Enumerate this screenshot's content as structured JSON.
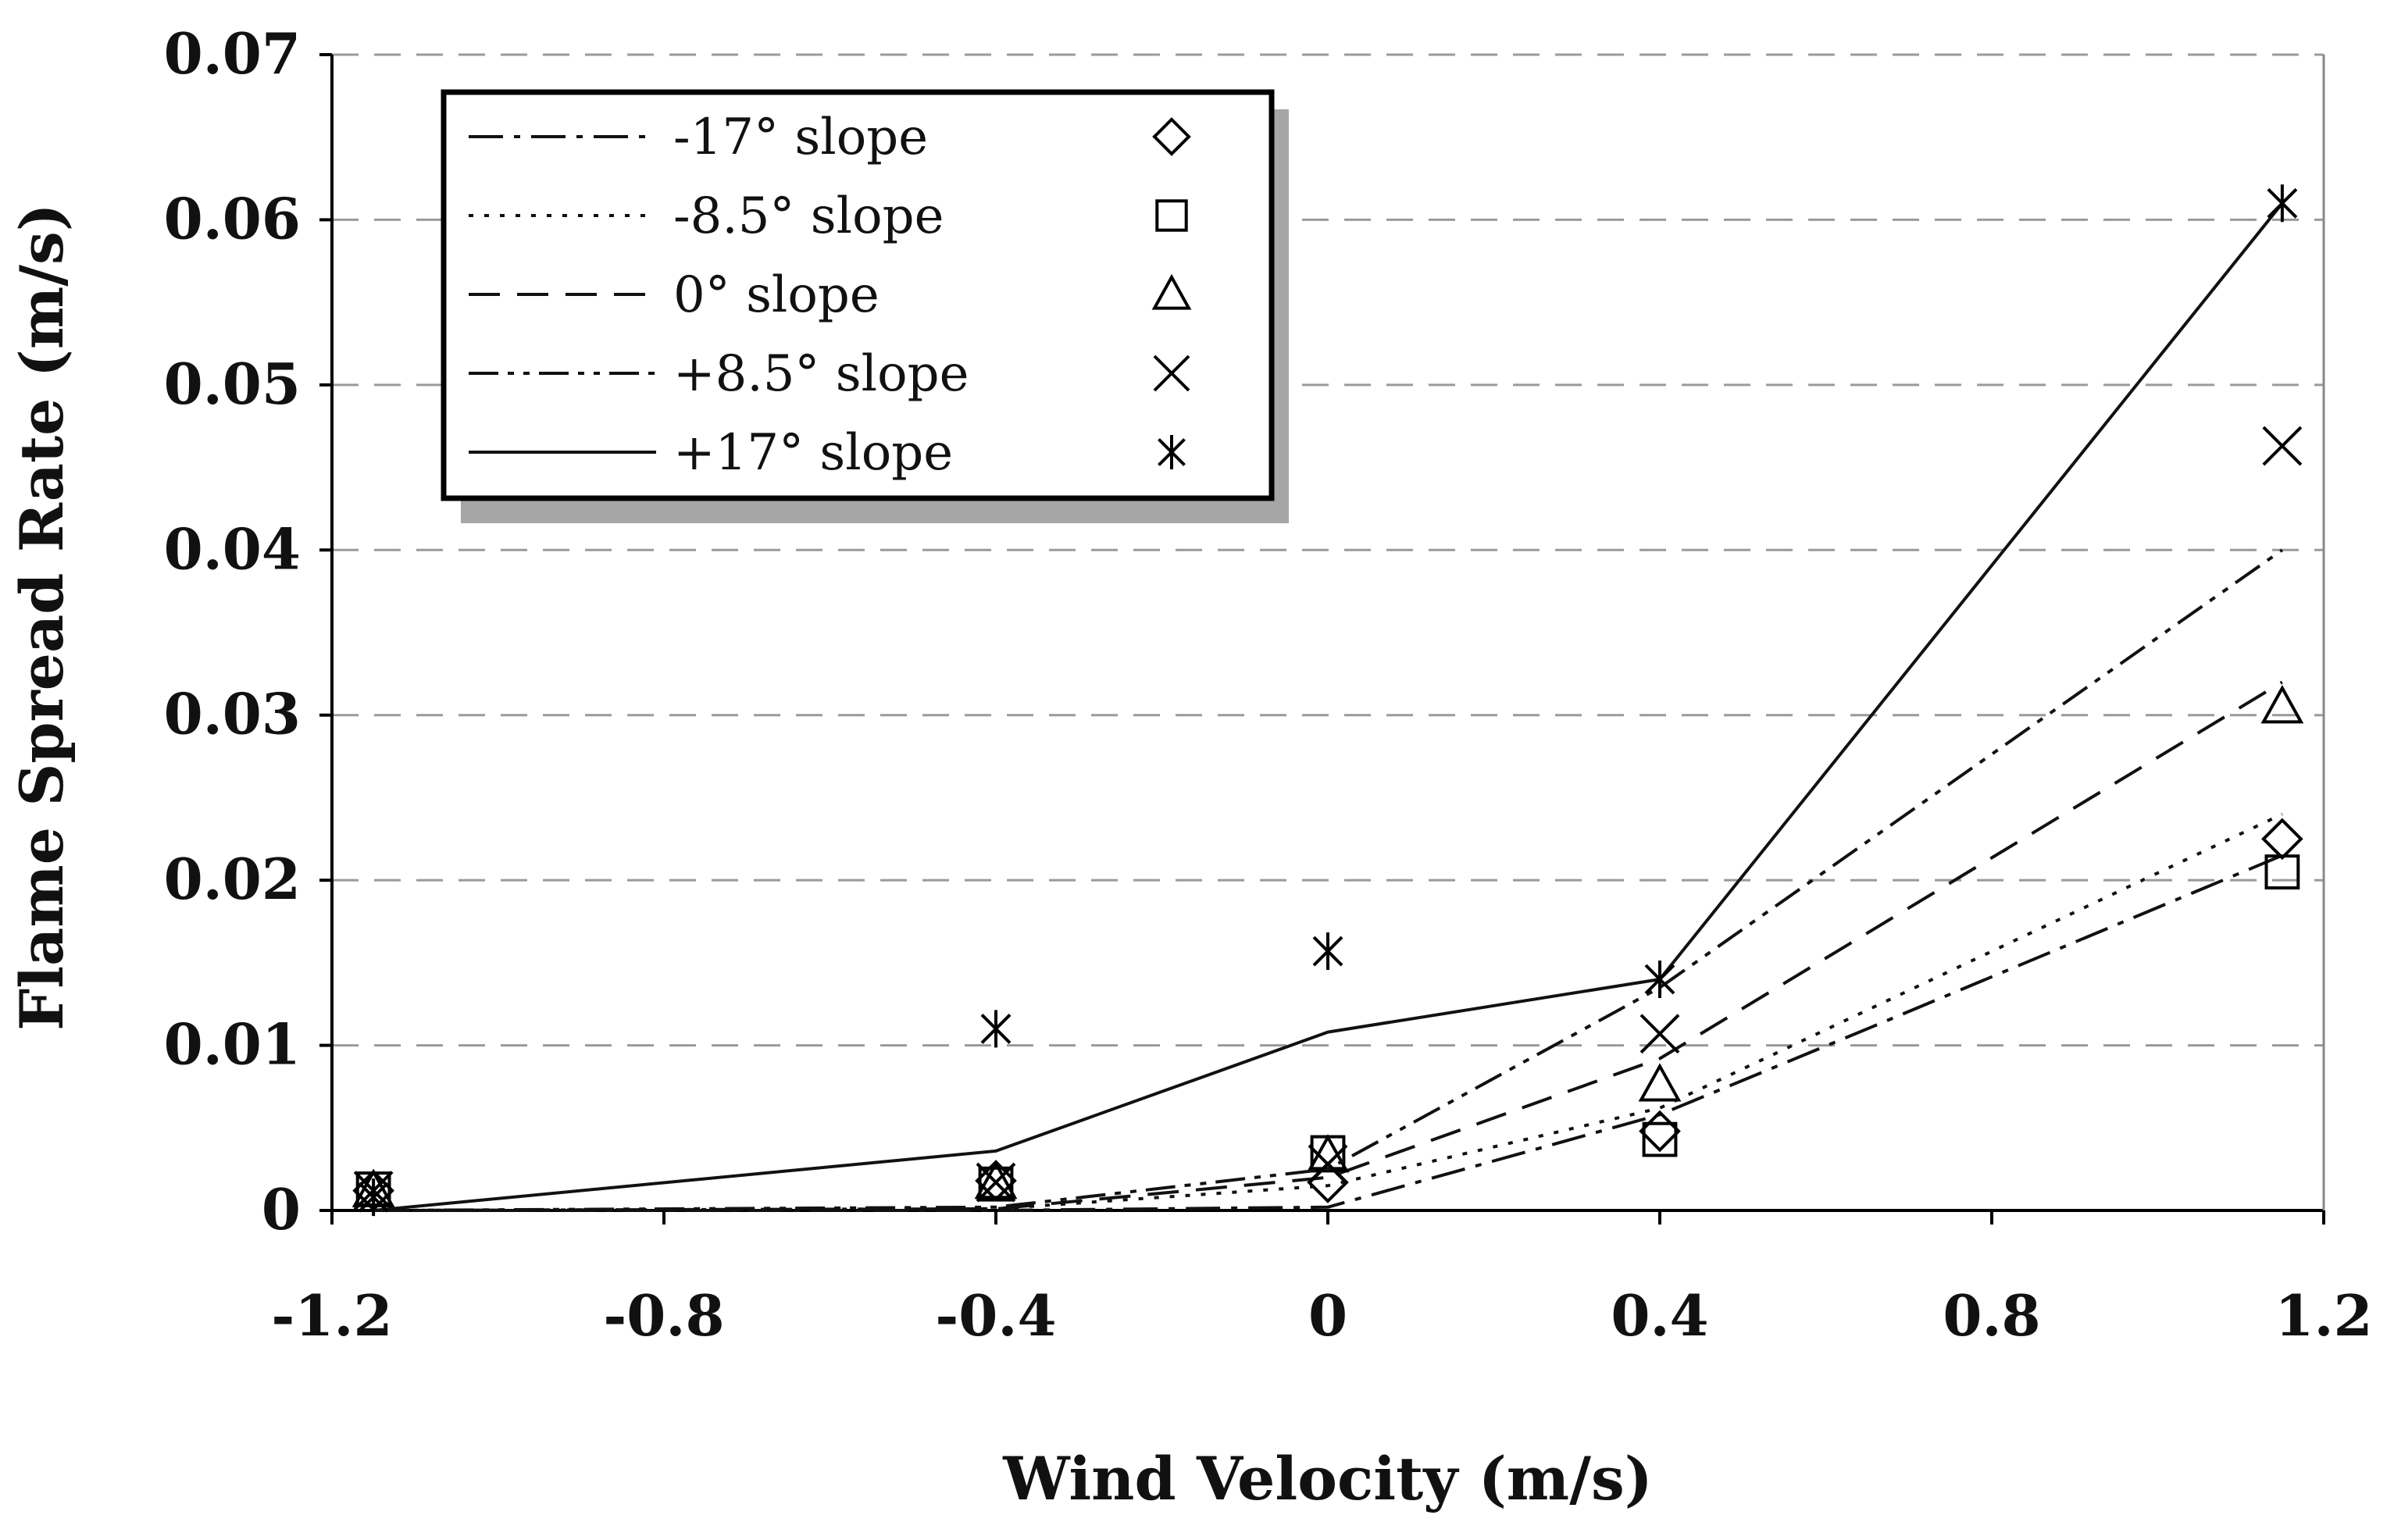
{
  "chart_data": {
    "type": "line",
    "title": "",
    "xlabel": "Wind Velocity (m/s)",
    "ylabel": "Flame Spread Rate (m/s)",
    "xlim": [
      -1.2,
      1.2
    ],
    "ylim": [
      0,
      0.07
    ],
    "x_ticks": [
      -1.2,
      -0.8,
      -0.4,
      0,
      0.4,
      0.8,
      1.2
    ],
    "x_tick_labels": [
      "-1.2",
      "-0.8",
      "-0.4",
      "0",
      "0.4",
      "0.8",
      "1.2"
    ],
    "y_ticks": [
      0,
      0.01,
      0.02,
      0.03,
      0.04,
      0.05,
      0.06,
      0.07
    ],
    "y_tick_labels": [
      "0",
      "0.01",
      "0.02",
      "0.03",
      "0.04",
      "0.05",
      "0.06",
      "0.07"
    ],
    "grid": "horizontal dashed",
    "legend_position": "top-left",
    "series": [
      {
        "name": "-17° slope",
        "label": "-17° slope",
        "line_style": "dash-dot",
        "marker": "diamond",
        "line_x": [
          -1.15,
          -0.4,
          0,
          0.4,
          0.65,
          1.15
        ],
        "line_y": [
          0.0,
          0.0,
          0.0002,
          0.0058,
          0.011,
          0.0215
        ],
        "points": [
          {
            "x": -1.15,
            "y": 0.0012
          },
          {
            "x": -0.4,
            "y": 0.0018
          },
          {
            "x": 0,
            "y": 0.0017
          },
          {
            "x": 0.4,
            "y": 0.0048
          },
          {
            "x": 1.15,
            "y": 0.0225
          }
        ]
      },
      {
        "name": "-8.5° slope",
        "label": "-8.5° slope",
        "line_style": "dotted",
        "marker": "square",
        "line_x": [
          -1.15,
          -0.4,
          0,
          0.4,
          1.15
        ],
        "line_y": [
          0.0,
          0.0001,
          0.0015,
          0.0062,
          0.024
        ],
        "points": [
          {
            "x": -1.15,
            "y": 0.0013
          },
          {
            "x": -0.4,
            "y": 0.0016
          },
          {
            "x": 0,
            "y": 0.0035
          },
          {
            "x": 0.4,
            "y": 0.0043
          },
          {
            "x": 1.15,
            "y": 0.0205
          }
        ]
      },
      {
        "name": "0° slope",
        "label": "0° slope",
        "line_style": "dashed",
        "marker": "triangle",
        "line_x": [
          -1.15,
          -0.4,
          0,
          0.4,
          1.15
        ],
        "line_y": [
          0.0,
          0.0001,
          0.002,
          0.0092,
          0.032
        ],
        "points": [
          {
            "x": -1.15,
            "y": 0.0012
          },
          {
            "x": -0.4,
            "y": 0.0017
          },
          {
            "x": 0,
            "y": 0.0033
          },
          {
            "x": 0.4,
            "y": 0.0076
          },
          {
            "x": 1.15,
            "y": 0.0305
          }
        ]
      },
      {
        "name": "+8.5° slope",
        "label": "+8.5° slope",
        "line_style": "dash-dot-dot",
        "marker": "x",
        "line_x": [
          -1.15,
          -0.4,
          0,
          0.4,
          1.15
        ],
        "line_y": [
          0.0,
          0.0002,
          0.0025,
          0.0135,
          0.04
        ],
        "points": [
          {
            "x": -1.15,
            "y": 0.0012
          },
          {
            "x": -0.4,
            "y": 0.0017
          },
          {
            "x": 0,
            "y": 0.0028
          },
          {
            "x": 0.4,
            "y": 0.0107
          },
          {
            "x": 1.15,
            "y": 0.0463
          }
        ]
      },
      {
        "name": "+17° slope",
        "label": "+17° slope",
        "line_style": "solid",
        "marker": "asterisk",
        "line_x": [
          -1.15,
          -0.4,
          0,
          0.4,
          1.15
        ],
        "line_y": [
          0.0,
          0.0036,
          0.0108,
          0.014,
          0.061
        ],
        "points": [
          {
            "x": -1.15,
            "y": 0.0008
          },
          {
            "x": -0.4,
            "y": 0.011
          },
          {
            "x": 0,
            "y": 0.0157
          },
          {
            "x": 0.4,
            "y": 0.014
          },
          {
            "x": 1.15,
            "y": 0.061
          }
        ]
      }
    ]
  }
}
